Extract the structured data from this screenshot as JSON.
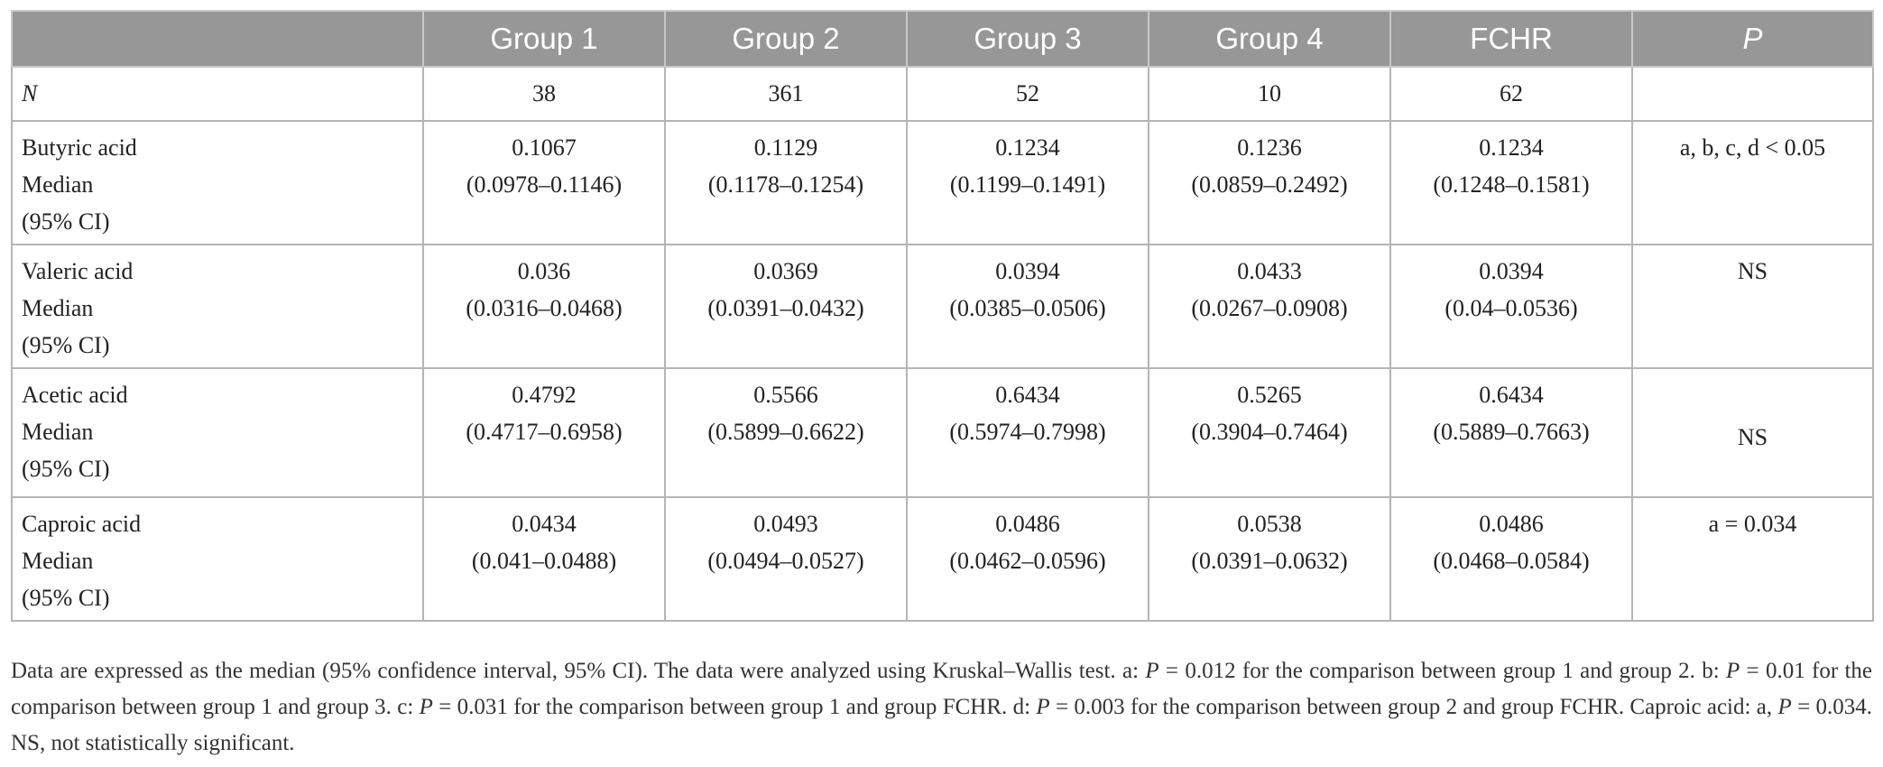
{
  "table": {
    "headers": [
      "",
      "Group 1",
      "Group 2",
      "Group 3",
      "Group 4",
      "FCHR",
      "P"
    ],
    "n_row": {
      "label": "N",
      "values": [
        "38",
        "361",
        "52",
        "10",
        "62",
        ""
      ]
    },
    "rows": [
      {
        "label_lines": [
          "Butyric acid",
          "Median",
          "(95% CI)"
        ],
        "cells": [
          [
            "0.1067",
            "(0.0978–0.1146)"
          ],
          [
            "0.1129",
            "(0.1178–0.1254)"
          ],
          [
            "0.1234",
            "(0.1199–0.1491)"
          ],
          [
            "0.1236",
            "(0.0859–0.2492)"
          ],
          [
            "0.1234",
            "(0.1248–0.1581)"
          ]
        ],
        "p_value": "a, b, c, d < 0.05"
      },
      {
        "label_lines": [
          "Valeric acid",
          "Median",
          "(95% CI)"
        ],
        "cells": [
          [
            "0.036",
            "(0.0316–0.0468)"
          ],
          [
            "0.0369",
            "(0.0391–0.0432)"
          ],
          [
            "0.0394",
            "(0.0385–0.0506)"
          ],
          [
            "0.0433",
            "(0.0267–0.0908)"
          ],
          [
            "0.0394",
            "(0.04–0.0536)"
          ]
        ],
        "p_value": "NS"
      },
      {
        "label_lines": [
          "Acetic acid",
          "Median",
          "(95% CI)"
        ],
        "cells": [
          [
            "0.4792",
            "(0.4717–0.6958)"
          ],
          [
            "0.5566",
            "(0.5899–0.6622)"
          ],
          [
            "0.6434",
            "(0.5974–0.7998)"
          ],
          [
            "0.5265",
            "(0.3904–0.7464)"
          ],
          [
            "0.6434",
            "(0.5889–0.7663)"
          ]
        ],
        "p_value": "NS"
      },
      {
        "label_lines": [
          "Caproic acid",
          "Median",
          "(95% CI)"
        ],
        "cells": [
          [
            "0.0434",
            "(0.041–0.0488)"
          ],
          [
            "0.0493",
            "(0.0494–0.0527)"
          ],
          [
            "0.0486",
            "(0.0462–0.0596)"
          ],
          [
            "0.0538",
            "(0.0391–0.0632)"
          ],
          [
            "0.0486",
            "(0.0468–0.0584)"
          ]
        ],
        "p_value": "a = 0.034"
      }
    ]
  },
  "footnote": {
    "s1": "Data are expressed as the median (95% confidence interval, 95% CI). The data were analyzed using Kruskal–Wallis test. a: ",
    "p_symbol": "P",
    "s2": " = 0.012 for the comparison between group 1 and group 2. b: ",
    "s3": " = 0.01 for the comparison between group 1 and group 3. c: ",
    "s4": " = 0.031 for the comparison between group 1 and group FCHR. d: ",
    "s5": " = 0.003 for the comparison between group 2 and group FCHR. Caproic acid: a, ",
    "s6": " = 0.034. NS, not statistically significant."
  }
}
